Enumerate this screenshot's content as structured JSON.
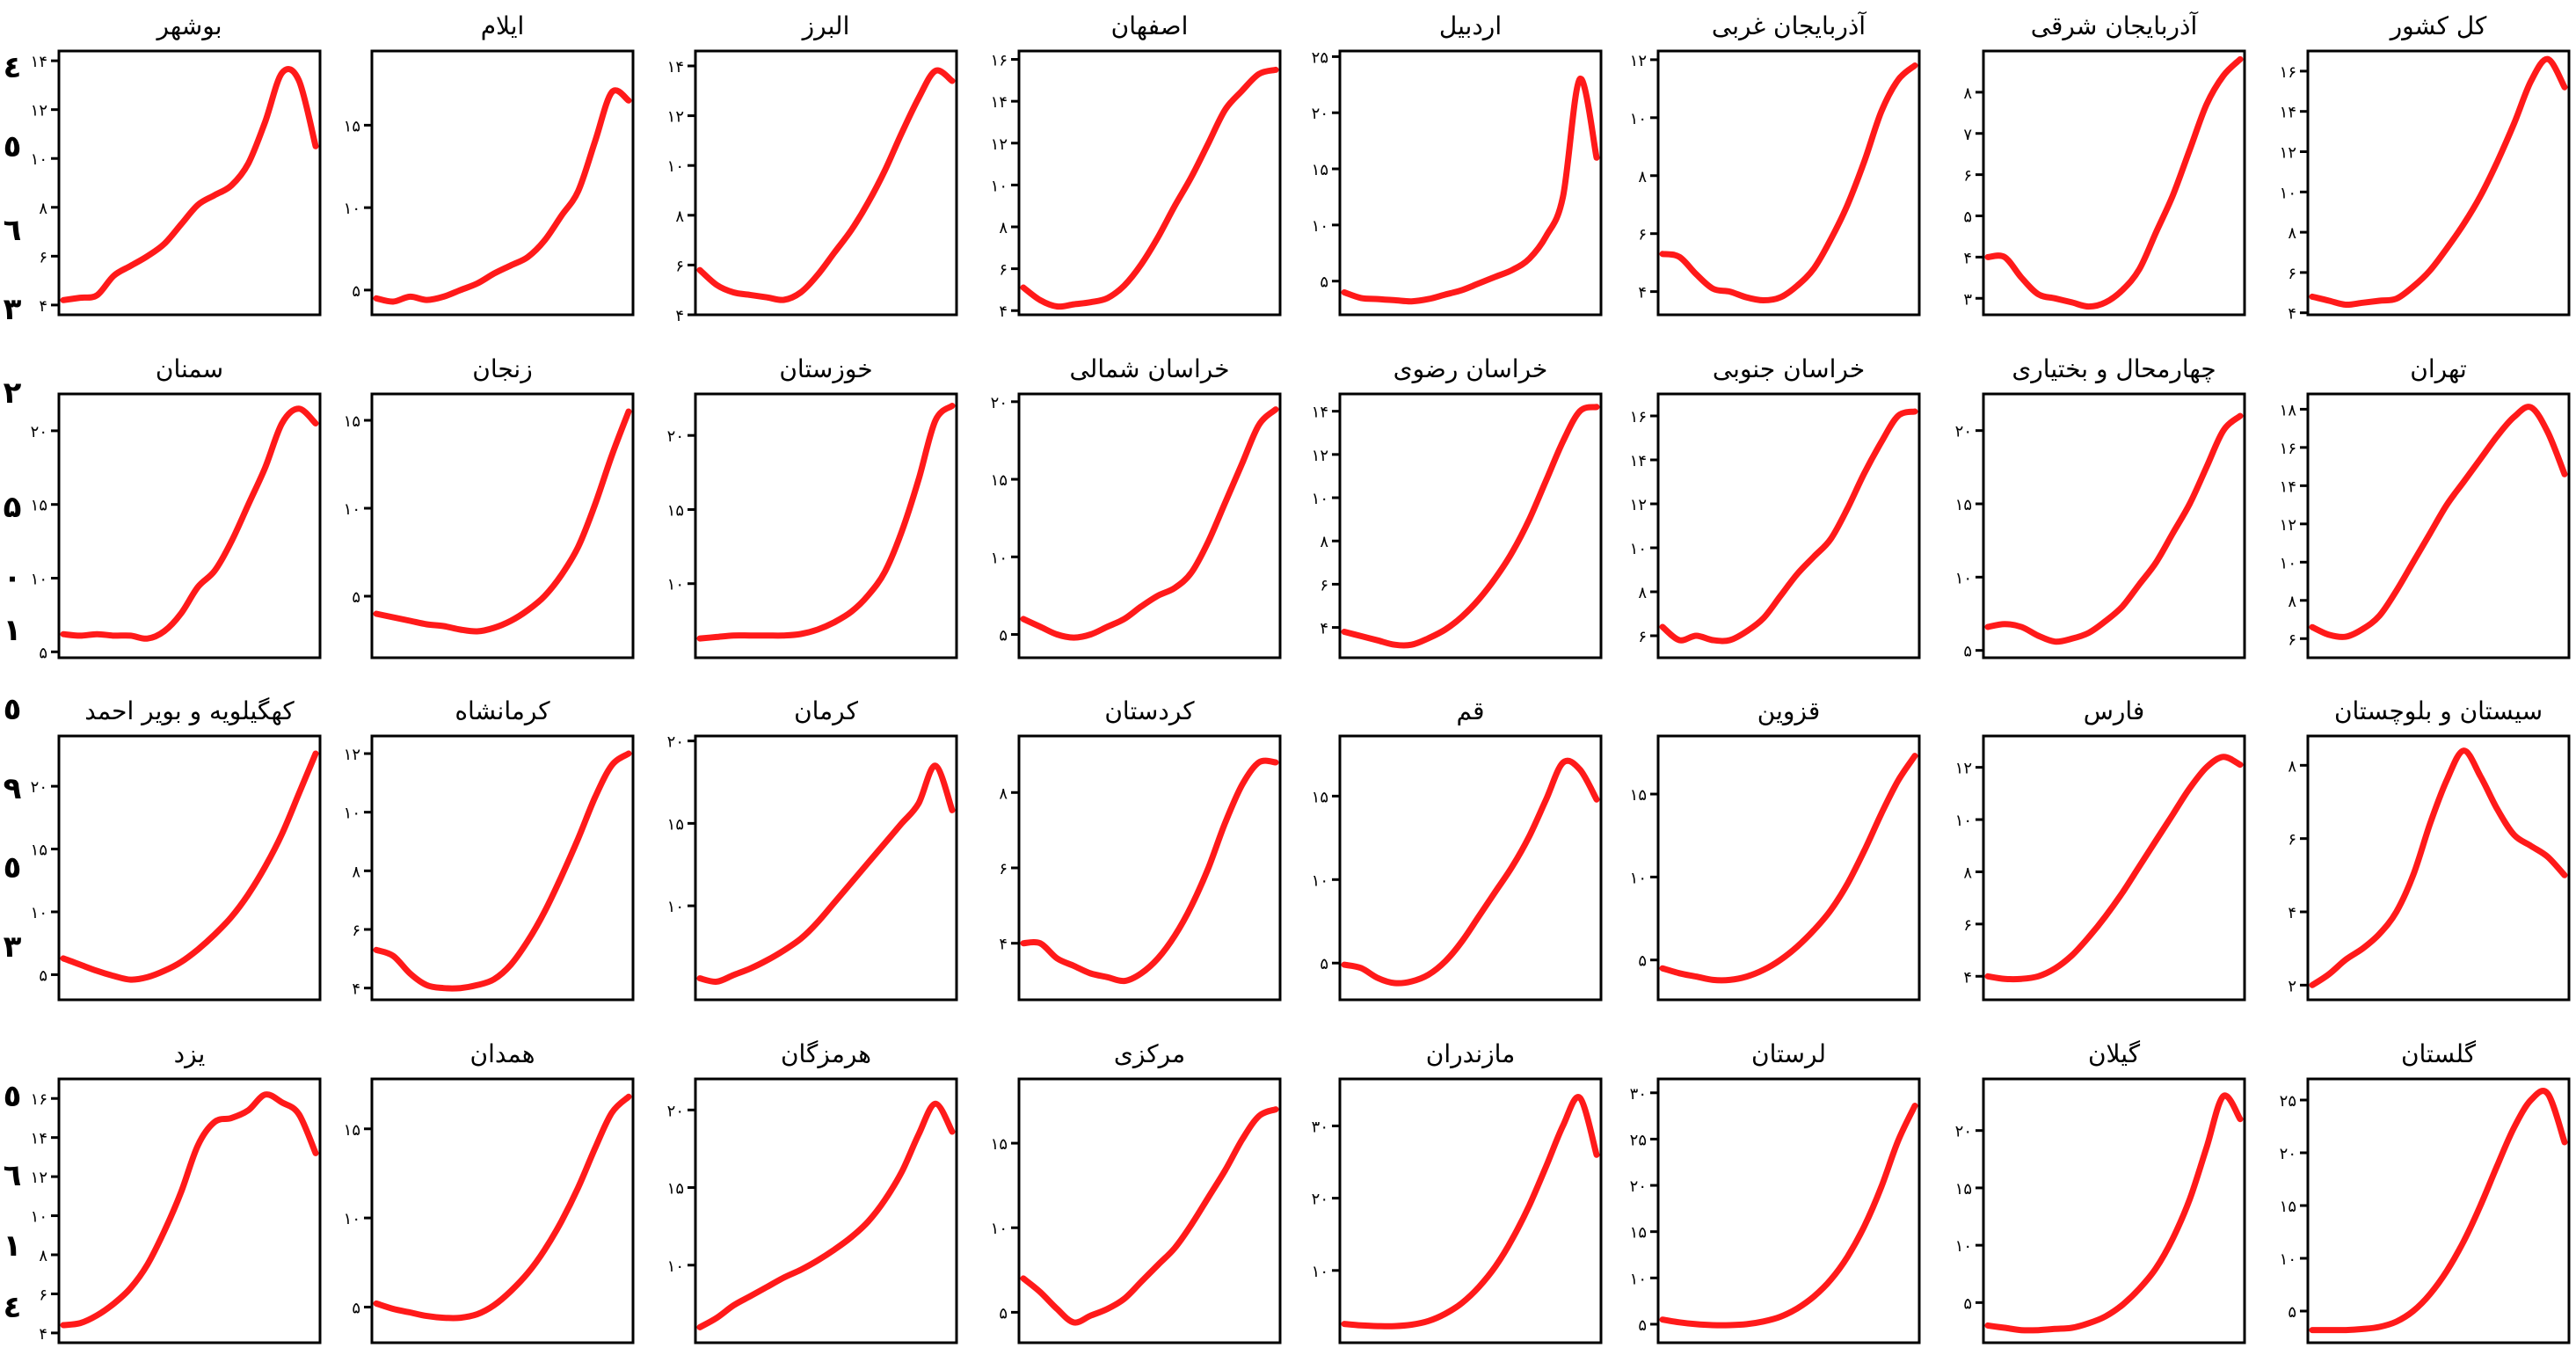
{
  "chart_data": {
    "type": "line",
    "layout": {
      "rows": 4,
      "cols": 8,
      "direction": "rtl"
    },
    "line_color": "#ff1a1a",
    "grid": false,
    "panels": [
      {
        "title": "کل کشور",
        "yticks": [
          4,
          6,
          8,
          10,
          12,
          14,
          16
        ],
        "ylim": [
          3.9,
          17
        ],
        "values": [
          4.8,
          4.6,
          4.4,
          4.5,
          4.6,
          4.7,
          5.3,
          6.1,
          7.2,
          8.4,
          9.8,
          11.5,
          13.4,
          15.5,
          16.6,
          15.2
        ]
      },
      {
        "title": "آذربایجان شرقی",
        "yticks": [
          3,
          4,
          5,
          6,
          7,
          8
        ],
        "ylim": [
          2.6,
          9.0
        ],
        "values": [
          4.0,
          4.0,
          3.5,
          3.1,
          3.0,
          2.9,
          2.8,
          2.9,
          3.2,
          3.7,
          4.6,
          5.5,
          6.6,
          7.7,
          8.4,
          8.8
        ]
      },
      {
        "title": "آذربایجان غربی",
        "yticks": [
          4,
          6,
          8,
          10,
          12
        ],
        "ylim": [
          3.2,
          12.3
        ],
        "values": [
          5.3,
          5.2,
          4.6,
          4.1,
          4.0,
          3.8,
          3.7,
          3.8,
          4.2,
          4.8,
          5.8,
          7.0,
          8.5,
          10.2,
          11.3,
          11.8
        ]
      },
      {
        "title": "اردبیل",
        "yticks": [
          5,
          10,
          15,
          20,
          25
        ],
        "ylim": [
          2,
          25.5
        ],
        "values": [
          4.0,
          3.5,
          3.4,
          3.3,
          3.2,
          3.4,
          3.8,
          4.2,
          4.8,
          5.4,
          6.0,
          7.0,
          9.0,
          12.5,
          23.0,
          16.0
        ]
      },
      {
        "title": "اصفهان",
        "yticks": [
          4,
          6,
          8,
          10,
          12,
          14,
          16
        ],
        "ylim": [
          3.8,
          16.4
        ],
        "values": [
          5.1,
          4.5,
          4.2,
          4.3,
          4.4,
          4.6,
          5.2,
          6.2,
          7.5,
          9.0,
          10.4,
          12.0,
          13.6,
          14.5,
          15.3,
          15.5
        ]
      },
      {
        "title": "البرز",
        "yticks": [
          4,
          6,
          8,
          10,
          12,
          14
        ],
        "ylim": [
          4,
          14.6
        ],
        "values": [
          5.8,
          5.2,
          4.9,
          4.8,
          4.7,
          4.6,
          4.9,
          5.6,
          6.5,
          7.4,
          8.5,
          9.8,
          11.3,
          12.7,
          13.8,
          13.4
        ]
      },
      {
        "title": "ایلام",
        "yticks": [
          5,
          10,
          15
        ],
        "ylim": [
          3.5,
          19.5
        ],
        "values": [
          4.5,
          4.3,
          4.6,
          4.4,
          4.6,
          5.0,
          5.4,
          6.0,
          6.5,
          7.0,
          8.0,
          9.5,
          11.0,
          14.0,
          17.0,
          16.5
        ]
      },
      {
        "title": "بوشهر",
        "yticks": [
          4,
          6,
          8,
          10,
          12,
          14
        ],
        "ylim": [
          3.6,
          14.4
        ],
        "values": [
          4.2,
          4.3,
          4.4,
          5.2,
          5.6,
          6.0,
          6.5,
          7.3,
          8.1,
          8.5,
          8.9,
          9.8,
          11.5,
          13.5,
          13.2,
          10.5
        ]
      },
      {
        "title": "تهران",
        "yticks": [
          6,
          8,
          10,
          12,
          14,
          16,
          18
        ],
        "ylim": [
          5,
          18.8
        ],
        "values": [
          6.6,
          6.2,
          6.1,
          6.5,
          7.2,
          8.5,
          10.0,
          11.5,
          13.0,
          14.2,
          15.4,
          16.6,
          17.6,
          18.1,
          16.8,
          14.6
        ]
      },
      {
        "title": "چهارمحال و بختیاری",
        "yticks": [
          5,
          10,
          15,
          20
        ],
        "ylim": [
          4.5,
          22.5
        ],
        "values": [
          6.6,
          6.8,
          6.6,
          6.0,
          5.6,
          5.8,
          6.2,
          7.0,
          8.0,
          9.5,
          11.0,
          13.0,
          15.0,
          17.5,
          20.0,
          21.0
        ]
      },
      {
        "title": "خراسان جنوبی",
        "yticks": [
          6,
          8,
          10,
          12,
          14,
          16
        ],
        "ylim": [
          5,
          17
        ],
        "values": [
          6.4,
          5.8,
          6.0,
          5.8,
          5.8,
          6.2,
          6.8,
          7.8,
          8.8,
          9.6,
          10.4,
          11.8,
          13.4,
          14.8,
          16.0,
          16.2
        ]
      },
      {
        "title": "خراسان رضوی",
        "yticks": [
          4,
          6,
          8,
          10,
          12,
          14
        ],
        "ylim": [
          2.6,
          14.8
        ],
        "values": [
          3.8,
          3.6,
          3.4,
          3.2,
          3.2,
          3.5,
          3.9,
          4.5,
          5.3,
          6.3,
          7.5,
          9.0,
          10.8,
          12.6,
          14.0,
          14.2
        ]
      },
      {
        "title": "خراسان شمالی",
        "yticks": [
          5,
          10,
          15,
          20
        ],
        "ylim": [
          3.5,
          20.5
        ],
        "values": [
          6.0,
          5.5,
          5.0,
          4.8,
          5.0,
          5.5,
          6.0,
          6.8,
          7.5,
          8.0,
          9.0,
          11.0,
          13.5,
          16.0,
          18.5,
          19.5
        ]
      },
      {
        "title": "خوزستان",
        "yticks": [
          10,
          15,
          20
        ],
        "ylim": [
          5,
          22.8
        ],
        "values": [
          6.3,
          6.4,
          6.5,
          6.5,
          6.5,
          6.5,
          6.6,
          6.9,
          7.4,
          8.1,
          9.2,
          10.8,
          13.5,
          17.0,
          21.0,
          22.0
        ]
      },
      {
        "title": "زنجان",
        "yticks": [
          5,
          10,
          15
        ],
        "ylim": [
          1.5,
          16.5
        ],
        "values": [
          4.0,
          3.8,
          3.6,
          3.4,
          3.3,
          3.1,
          3.0,
          3.2,
          3.6,
          4.2,
          5.0,
          6.2,
          7.8,
          10.2,
          13.0,
          15.5
        ]
      },
      {
        "title": "سمنان",
        "yticks": [
          5,
          10,
          15,
          20
        ],
        "ylim": [
          4.6,
          22.5
        ],
        "values": [
          6.2,
          6.1,
          6.2,
          6.1,
          6.1,
          5.9,
          6.4,
          7.6,
          9.4,
          10.5,
          12.5,
          15.0,
          17.5,
          20.5,
          21.5,
          20.5
        ]
      },
      {
        "title": "سیستان و بلوچستان",
        "yticks": [
          2,
          4,
          6,
          8
        ],
        "ylim": [
          1.6,
          8.8
        ],
        "values": [
          2.0,
          2.3,
          2.7,
          3.0,
          3.4,
          4.0,
          5.0,
          6.4,
          7.6,
          8.4,
          7.7,
          6.8,
          6.1,
          5.8,
          5.5,
          5.0
        ]
      },
      {
        "title": "فارس",
        "yticks": [
          4,
          6,
          8,
          10,
          12
        ],
        "ylim": [
          3.1,
          13.2
        ],
        "values": [
          4.0,
          3.9,
          3.9,
          4.0,
          4.3,
          4.8,
          5.5,
          6.3,
          7.2,
          8.2,
          9.2,
          10.2,
          11.2,
          12.0,
          12.4,
          12.1
        ]
      },
      {
        "title": "قزوین",
        "yticks": [
          5,
          10,
          15
        ],
        "ylim": [
          2.6,
          18.5
        ],
        "values": [
          4.5,
          4.2,
          4.0,
          3.8,
          3.8,
          4.0,
          4.4,
          5.0,
          5.8,
          6.8,
          8.0,
          9.6,
          11.6,
          13.8,
          15.8,
          17.3
        ]
      },
      {
        "title": "قم",
        "yticks": [
          5,
          10,
          15
        ],
        "ylim": [
          2.8,
          18.6
        ],
        "values": [
          4.9,
          4.7,
          4.1,
          3.8,
          3.9,
          4.3,
          5.1,
          6.3,
          7.8,
          9.3,
          10.8,
          12.6,
          14.8,
          17.0,
          16.6,
          14.8
        ]
      },
      {
        "title": "کردستان",
        "yticks": [
          4,
          6,
          8
        ],
        "ylim": [
          2.5,
          9.5
        ],
        "values": [
          4.0,
          4.0,
          3.6,
          3.4,
          3.2,
          3.1,
          3.0,
          3.2,
          3.6,
          4.2,
          5.0,
          6.0,
          7.2,
          8.2,
          8.8,
          8.8
        ]
      },
      {
        "title": "کرمان",
        "yticks": [
          10,
          15,
          20
        ],
        "ylim": [
          4.3,
          20.3
        ],
        "values": [
          5.6,
          5.4,
          5.8,
          6.2,
          6.7,
          7.3,
          8.0,
          9.0,
          10.2,
          11.4,
          12.6,
          13.8,
          15.0,
          16.2,
          18.5,
          15.8
        ]
      },
      {
        "title": "کرمانشاه",
        "yticks": [
          4,
          6,
          8,
          10,
          12
        ],
        "ylim": [
          3.6,
          12.6
        ],
        "values": [
          5.3,
          5.1,
          4.5,
          4.1,
          4.0,
          4.0,
          4.1,
          4.3,
          4.8,
          5.6,
          6.6,
          7.8,
          9.1,
          10.5,
          11.6,
          12.0
        ]
      },
      {
        "title": "کهگیلویه و بویر احمد",
        "yticks": [
          5,
          10,
          15,
          20
        ],
        "ylim": [
          3,
          24
        ],
        "values": [
          6.3,
          5.8,
          5.3,
          4.9,
          4.6,
          4.8,
          5.3,
          6.0,
          7.0,
          8.2,
          9.6,
          11.4,
          13.6,
          16.2,
          19.4,
          22.6
        ]
      },
      {
        "title": "گلستان",
        "yticks": [
          5,
          10,
          15,
          20,
          25
        ],
        "ylim": [
          2,
          27
        ],
        "values": [
          3.2,
          3.2,
          3.2,
          3.3,
          3.5,
          4.0,
          5.0,
          6.6,
          8.8,
          11.6,
          15.0,
          18.8,
          22.4,
          25.0,
          25.6,
          21.0
        ]
      },
      {
        "title": "گیلان",
        "yticks": [
          5,
          10,
          15,
          20
        ],
        "ylim": [
          1.5,
          24.5
        ],
        "values": [
          3.0,
          2.8,
          2.6,
          2.6,
          2.7,
          2.8,
          3.2,
          3.8,
          4.8,
          6.2,
          8.0,
          10.6,
          14.0,
          18.5,
          23.0,
          21.0
        ]
      },
      {
        "title": "لرستان",
        "yticks": [
          5,
          10,
          15,
          20,
          25,
          30
        ],
        "ylim": [
          3,
          31.5
        ],
        "values": [
          5.5,
          5.2,
          5.0,
          4.9,
          4.9,
          5.0,
          5.3,
          5.8,
          6.7,
          8.0,
          9.8,
          12.3,
          15.6,
          19.8,
          24.8,
          28.6
        ]
      },
      {
        "title": "مازندران",
        "yticks": [
          10,
          20,
          30
        ],
        "ylim": [
          0,
          36.5
        ],
        "values": [
          2.6,
          2.4,
          2.3,
          2.3,
          2.5,
          3.0,
          4.0,
          5.5,
          7.7,
          10.6,
          14.4,
          19.0,
          24.4,
          30.0,
          33.9,
          26.0
        ]
      },
      {
        "title": "مرکزی",
        "yticks": [
          5,
          10,
          15
        ],
        "ylim": [
          3.2,
          18.8
        ],
        "values": [
          7.0,
          6.2,
          5.2,
          4.4,
          4.8,
          5.2,
          5.8,
          6.8,
          7.8,
          8.8,
          10.2,
          11.8,
          13.4,
          15.2,
          16.6,
          17.0
        ]
      },
      {
        "title": "هرمزگان",
        "yticks": [
          10,
          15,
          20
        ],
        "ylim": [
          5,
          22
        ],
        "values": [
          6.0,
          6.6,
          7.4,
          8.0,
          8.6,
          9.2,
          9.7,
          10.3,
          11.0,
          11.8,
          12.8,
          14.2,
          16.0,
          18.4,
          20.4,
          18.6
        ]
      },
      {
        "title": "همدان",
        "yticks": [
          5,
          10,
          15
        ],
        "ylim": [
          3,
          17.8
        ],
        "values": [
          5.2,
          4.9,
          4.7,
          4.5,
          4.4,
          4.4,
          4.6,
          5.1,
          5.9,
          6.9,
          8.2,
          9.8,
          11.7,
          13.9,
          15.9,
          16.8
        ]
      },
      {
        "title": "یزد",
        "yticks": [
          4,
          6,
          8,
          10,
          12,
          14,
          16
        ],
        "ylim": [
          3.5,
          17
        ],
        "values": [
          4.4,
          4.5,
          4.9,
          5.5,
          6.3,
          7.5,
          9.2,
          11.2,
          13.6,
          14.8,
          15.0,
          15.4,
          16.2,
          15.8,
          15.2,
          13.2
        ]
      }
    ]
  }
}
